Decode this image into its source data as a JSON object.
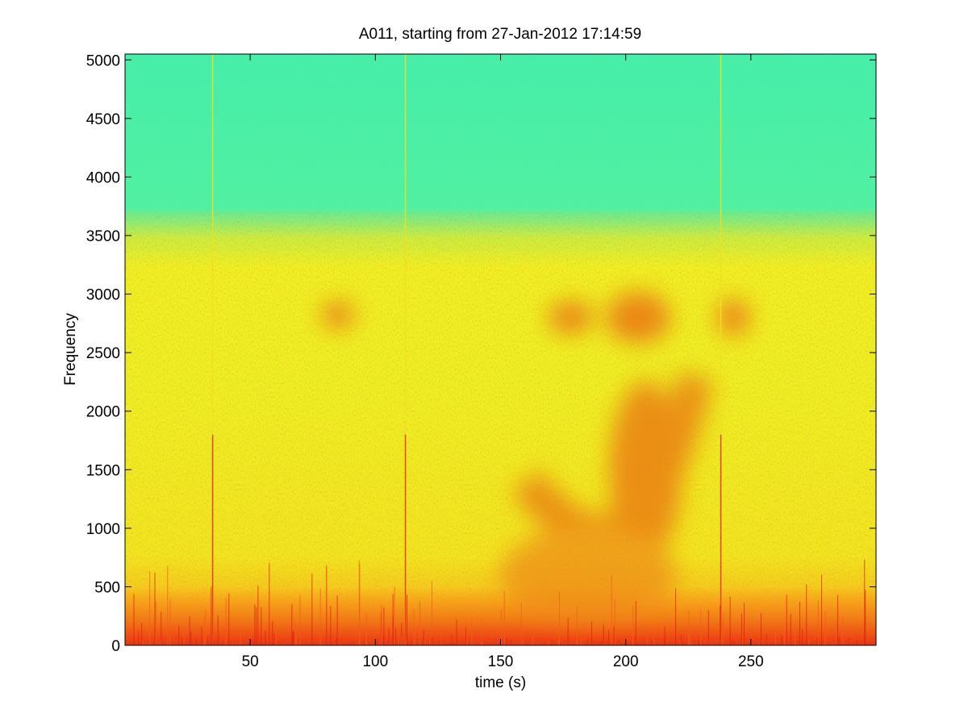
{
  "chart_data": {
    "type": "heatmap",
    "title": "A011, starting from 27-Jan-2012 17:14:59",
    "xlabel": "time (s)",
    "ylabel": "Frequency",
    "xlim": [
      0,
      300
    ],
    "ylim": [
      0,
      5050
    ],
    "xticks": [
      50,
      100,
      150,
      200,
      250
    ],
    "yticks": [
      0,
      500,
      1000,
      1500,
      2000,
      2500,
      3000,
      3500,
      4000,
      4500,
      5000
    ],
    "colormap": "jet",
    "colors": {
      "low": "#40f0a0",
      "mid": "#f0f020",
      "high": "#e82010"
    },
    "broadband_transients_s": [
      35,
      112,
      238
    ],
    "intensity_regions": [
      {
        "name": "background noise above ~3700 Hz",
        "level": 0.38
      },
      {
        "name": "broadband band 0-3600 Hz",
        "level": 0.62
      },
      {
        "name": "low-frequency band 0-500 Hz",
        "level": 0.8
      },
      {
        "name": "tonal energy near 2800 Hz, 170-250 s",
        "level": 0.8
      },
      {
        "name": "descending-ascending arc 1000-2500 Hz, 180-230 s",
        "level": 0.75
      }
    ]
  }
}
